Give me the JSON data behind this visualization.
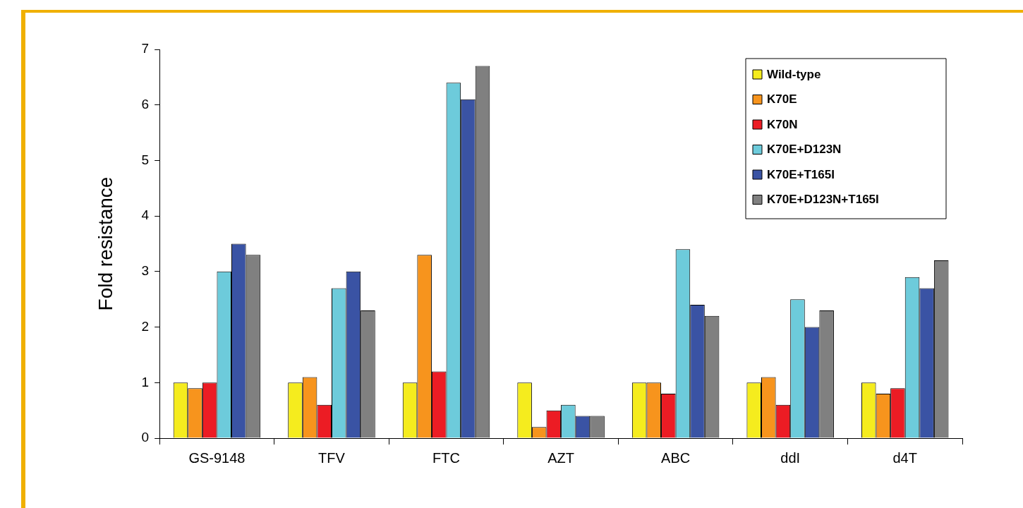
{
  "chart_data": {
    "type": "bar",
    "ylabel": "Fold resistance",
    "categories": [
      "GS-9148",
      "TFV",
      "FTC",
      "AZT",
      "ABC",
      "ddI",
      "d4T"
    ],
    "series": [
      {
        "name": "Wild-type",
        "color": "#f5ec1e",
        "values": [
          1,
          1,
          1,
          1,
          1,
          1,
          1
        ]
      },
      {
        "name": "K70E",
        "color": "#f7941d",
        "values": [
          0.9,
          1.1,
          3.3,
          0.2,
          1,
          1.1,
          0.8
        ]
      },
      {
        "name": "K70N",
        "color": "#ec1c24",
        "values": [
          1,
          0.6,
          1.2,
          0.5,
          0.8,
          0.6,
          0.9
        ]
      },
      {
        "name": "K70E+D123N",
        "color": "#6dcbdb",
        "values": [
          3,
          2.7,
          6.4,
          0.6,
          3.4,
          2.5,
          2.9
        ]
      },
      {
        "name": "K70E+T165I",
        "color": "#3a53a4",
        "values": [
          3.5,
          3,
          6.1,
          0.4,
          2.4,
          2,
          2.7
        ]
      },
      {
        "name": "K70E+D123N+T165I",
        "color": "#808080",
        "values": [
          3.3,
          2.3,
          6.7,
          0.4,
          2.2,
          2.3,
          3.2
        ]
      }
    ],
    "ylim": [
      0,
      7
    ],
    "yticks": [
      0,
      1,
      2,
      3,
      4,
      5,
      6,
      7
    ],
    "grid": false,
    "legend": "top right"
  }
}
